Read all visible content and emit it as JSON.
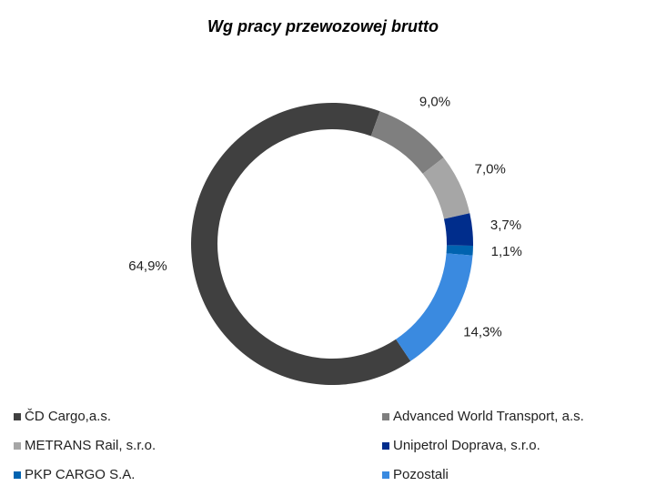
{
  "chart_data": {
    "type": "donut",
    "title": "Wg pracy przewozowej brutto",
    "categories": [
      "ČD Cargo,a.s.",
      "Advanced World Transport, a.s.",
      "METRANS Rail, s.r.o.",
      "Unipetrol Doprava, s.r.o.",
      "PKP CARGO S.A.",
      "Pozostali"
    ],
    "values": [
      64.9,
      9.0,
      7.0,
      3.7,
      1.1,
      14.3
    ],
    "value_labels": [
      "64,9%",
      "9,0%",
      "7,0%",
      "3,7%",
      "1,1%",
      "14,3%"
    ],
    "colors": [
      "#404040",
      "#7f7f7f",
      "#a6a6a6",
      "#002d8c",
      "#0063b0",
      "#3a8ae0"
    ],
    "legend": "bottom"
  }
}
